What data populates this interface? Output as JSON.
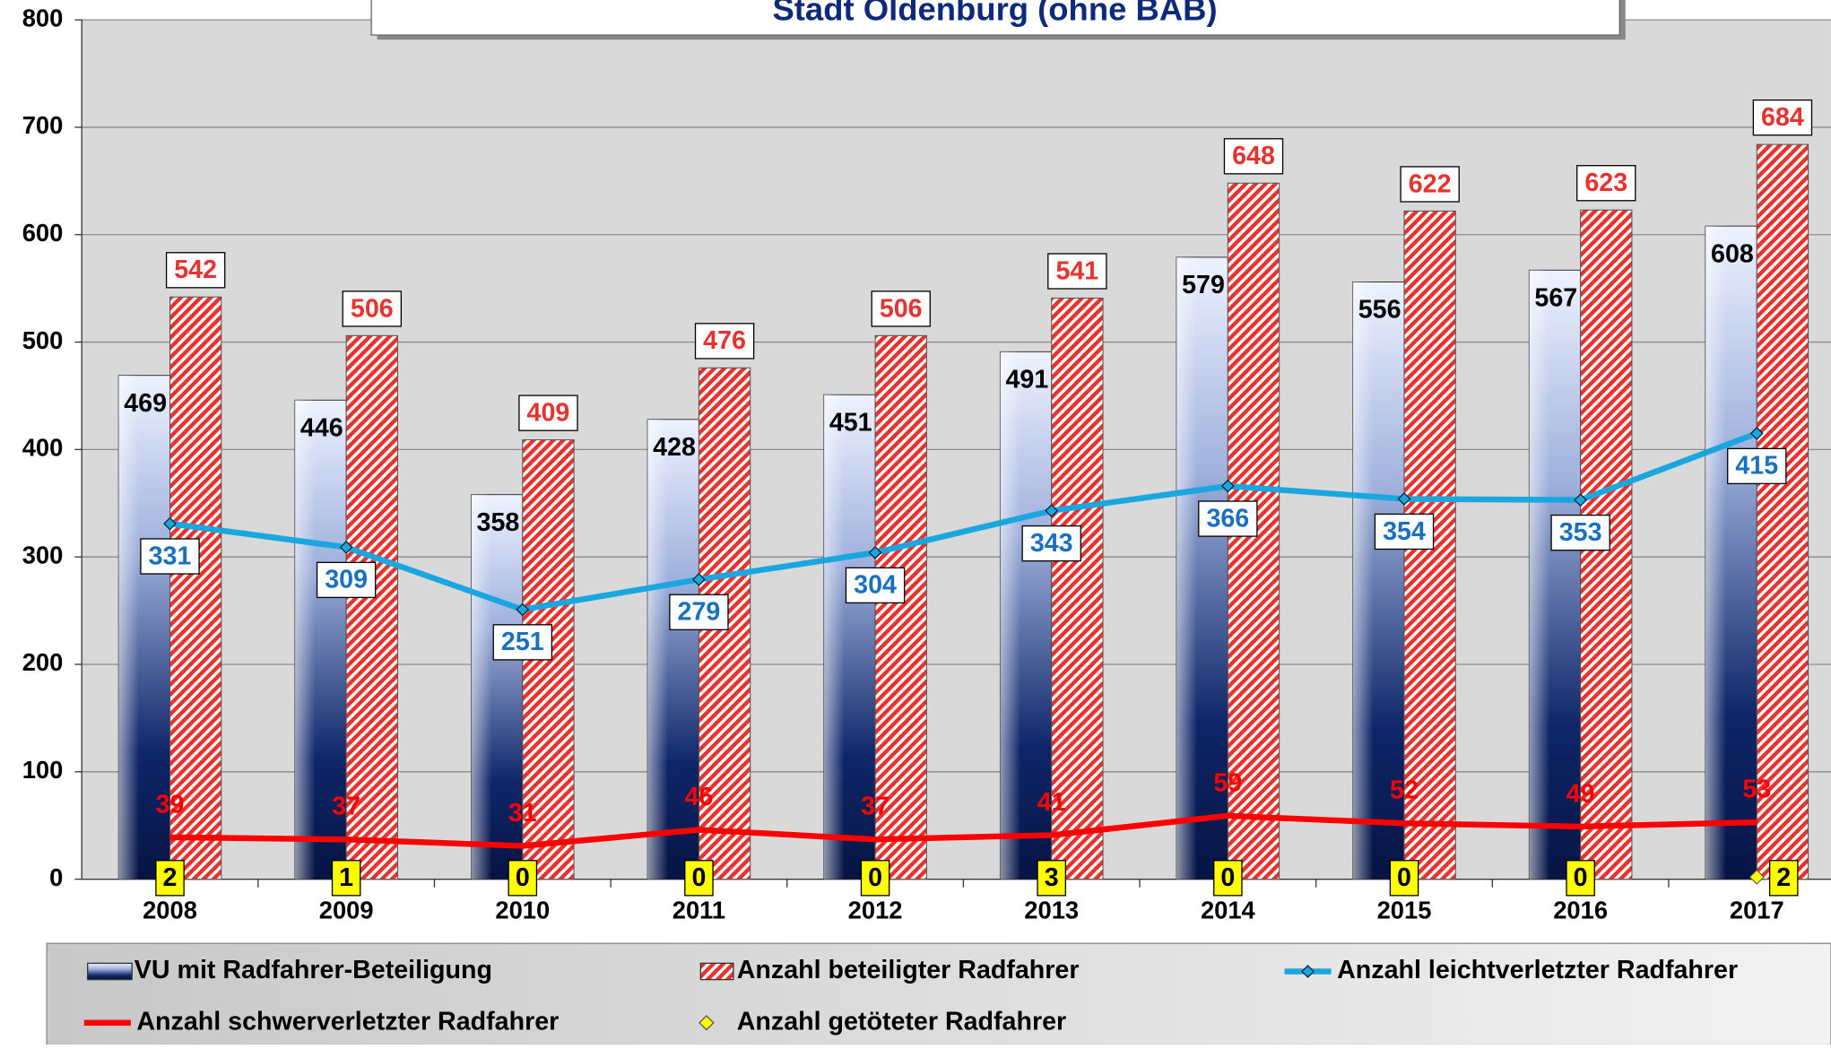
{
  "chart_data": {
    "type": "bar_line",
    "title": "Stadt Oldenburg (ohne BAB)",
    "categories": [
      "2008",
      "2009",
      "2010",
      "2011",
      "2012",
      "2013",
      "2014",
      "2015",
      "2016",
      "2017"
    ],
    "series": [
      {
        "name": "VU mit Radfahrer-Beteiligung",
        "kind": "bar",
        "color": "#0a1f5c",
        "values": [
          469,
          446,
          358,
          428,
          451,
          491,
          579,
          556,
          567,
          608
        ]
      },
      {
        "name": "Anzahl beteiligter Radfahrer",
        "kind": "bar",
        "color": "#e8322e",
        "values": [
          542,
          506,
          409,
          476,
          506,
          541,
          648,
          622,
          623,
          684
        ]
      },
      {
        "name": "Anzahl leichtverletzter Radfahrer",
        "kind": "line",
        "color": "#1aa7e0",
        "values": [
          331,
          309,
          251,
          279,
          304,
          343,
          366,
          354,
          353,
          415
        ]
      },
      {
        "name": "Anzahl schwerverletzter Radfahrer",
        "kind": "line",
        "color": "#ff0000",
        "values": [
          39,
          37,
          31,
          46,
          37,
          41,
          59,
          52,
          49,
          53
        ]
      },
      {
        "name": "Anzahl getöteter Radfahrer",
        "kind": "marker",
        "color": "#ffff00",
        "values": [
          2,
          1,
          0,
          0,
          0,
          3,
          0,
          0,
          0,
          2
        ]
      }
    ],
    "ylim": [
      0,
      800
    ],
    "yticks": [
      0,
      100,
      200,
      300,
      400,
      500,
      600,
      700,
      800
    ],
    "grid": true
  }
}
